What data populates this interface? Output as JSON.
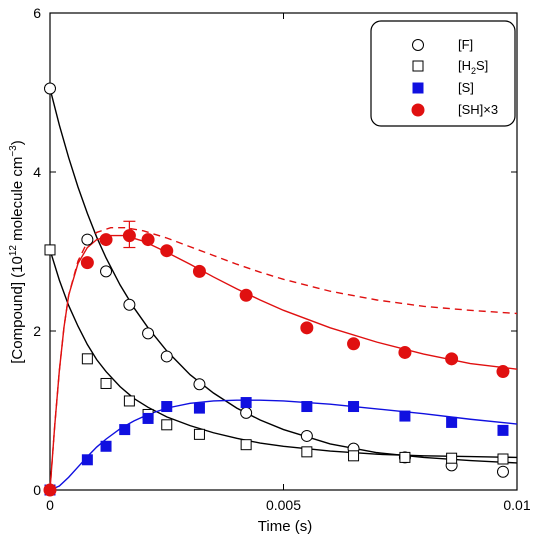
{
  "chart_data": {
    "type": "scatter",
    "xlabel": "Time (s)",
    "ylabel_main": "[Compound] (10",
    "ylabel_exp": "12",
    "ylabel_mid": " molecule cm",
    "ylabel_exp2": "−3",
    "ylabel_end": ")",
    "xlim": [
      0,
      0.01
    ],
    "ylim": [
      0,
      6
    ],
    "x_ticks": [
      {
        "value": 0,
        "label": "0"
      },
      {
        "value": 0.005,
        "label": "0.005"
      },
      {
        "value": 0.01,
        "label": "0.01"
      }
    ],
    "y_ticks": [
      {
        "value": 0,
        "label": "0"
      },
      {
        "value": 2,
        "label": "2"
      },
      {
        "value": 4,
        "label": "4"
      },
      {
        "value": 6,
        "label": "6"
      }
    ],
    "legend_position": "top-right",
    "series": [
      {
        "name": "[F]",
        "marker": "open-circle",
        "color": "#000000",
        "points": [
          [
            0.0,
            5.05
          ],
          [
            0.0008,
            3.15
          ],
          [
            0.0012,
            2.75
          ],
          [
            0.0017,
            2.33
          ],
          [
            0.0021,
            1.97
          ],
          [
            0.0025,
            1.68
          ],
          [
            0.0032,
            1.33
          ],
          [
            0.0042,
            0.97
          ],
          [
            0.0055,
            0.68
          ],
          [
            0.0065,
            0.52
          ],
          [
            0.0076,
            0.41
          ],
          [
            0.0086,
            0.31
          ],
          [
            0.0097,
            0.23
          ]
        ],
        "fit": [
          [
            0.0,
            5.05
          ],
          [
            0.0002,
            4.59
          ],
          [
            0.0004,
            4.18
          ],
          [
            0.0006,
            3.81
          ],
          [
            0.0008,
            3.48
          ],
          [
            0.001,
            3.18
          ],
          [
            0.0012,
            2.92
          ],
          [
            0.0015,
            2.58
          ],
          [
            0.0018,
            2.29
          ],
          [
            0.0021,
            2.04
          ],
          [
            0.0025,
            1.75
          ],
          [
            0.003,
            1.45
          ],
          [
            0.0035,
            1.22
          ],
          [
            0.004,
            1.03
          ],
          [
            0.0045,
            0.88
          ],
          [
            0.005,
            0.76
          ],
          [
            0.006,
            0.58
          ],
          [
            0.007,
            0.47
          ],
          [
            0.008,
            0.41
          ],
          [
            0.009,
            0.37
          ],
          [
            0.01,
            0.34
          ]
        ]
      },
      {
        "name_main": "[H",
        "name_sub": "2",
        "name_end": "S]",
        "marker": "open-square",
        "color": "#000000",
        "points": [
          [
            0.0,
            3.02
          ],
          [
            0.0008,
            1.65
          ],
          [
            0.0012,
            1.34
          ],
          [
            0.0017,
            1.12
          ],
          [
            0.0021,
            0.95
          ],
          [
            0.0025,
            0.82
          ],
          [
            0.0032,
            0.7
          ],
          [
            0.0042,
            0.57
          ],
          [
            0.0055,
            0.48
          ],
          [
            0.0065,
            0.43
          ],
          [
            0.0076,
            0.41
          ],
          [
            0.0086,
            0.4
          ],
          [
            0.0097,
            0.39
          ]
        ],
        "fit": [
          [
            0.0,
            3.02
          ],
          [
            0.0002,
            2.64
          ],
          [
            0.0004,
            2.32
          ],
          [
            0.0006,
            2.06
          ],
          [
            0.0008,
            1.83
          ],
          [
            0.001,
            1.64
          ],
          [
            0.0012,
            1.49
          ],
          [
            0.0015,
            1.3
          ],
          [
            0.0018,
            1.15
          ],
          [
            0.0021,
            1.04
          ],
          [
            0.0025,
            0.92
          ],
          [
            0.003,
            0.81
          ],
          [
            0.0035,
            0.72
          ],
          [
            0.004,
            0.65
          ],
          [
            0.0045,
            0.59
          ],
          [
            0.005,
            0.55
          ],
          [
            0.006,
            0.49
          ],
          [
            0.007,
            0.45
          ],
          [
            0.008,
            0.43
          ],
          [
            0.009,
            0.42
          ],
          [
            0.01,
            0.41
          ]
        ]
      },
      {
        "name": "[S]",
        "marker": "filled-square",
        "color": "#1010e0",
        "points": [
          [
            0.0,
            0.0
          ],
          [
            0.0008,
            0.38
          ],
          [
            0.0012,
            0.55
          ],
          [
            0.0016,
            0.76
          ],
          [
            0.0021,
            0.9
          ],
          [
            0.0025,
            1.05
          ],
          [
            0.0032,
            1.03
          ],
          [
            0.0042,
            1.1
          ],
          [
            0.0055,
            1.05
          ],
          [
            0.0065,
            1.05
          ],
          [
            0.0076,
            0.93
          ],
          [
            0.0086,
            0.85
          ],
          [
            0.0097,
            0.75
          ]
        ],
        "fit": [
          [
            0.0,
            0.0
          ],
          [
            0.0002,
            0.05
          ],
          [
            0.0004,
            0.16
          ],
          [
            0.0006,
            0.29
          ],
          [
            0.0008,
            0.42
          ],
          [
            0.001,
            0.54
          ],
          [
            0.0012,
            0.64
          ],
          [
            0.0015,
            0.77
          ],
          [
            0.0018,
            0.87
          ],
          [
            0.0021,
            0.95
          ],
          [
            0.0025,
            1.03
          ],
          [
            0.003,
            1.09
          ],
          [
            0.0035,
            1.12
          ],
          [
            0.004,
            1.13
          ],
          [
            0.0045,
            1.13
          ],
          [
            0.005,
            1.12
          ],
          [
            0.006,
            1.08
          ],
          [
            0.007,
            1.02
          ],
          [
            0.008,
            0.96
          ],
          [
            0.009,
            0.89
          ],
          [
            0.01,
            0.83
          ]
        ]
      },
      {
        "name": "[SH]×3",
        "marker": "filled-circle",
        "color": "#e01010",
        "points": [
          [
            0.0,
            0.0
          ],
          [
            0.0008,
            2.86
          ],
          [
            0.0012,
            3.15
          ],
          [
            0.0017,
            3.2
          ],
          [
            0.0021,
            3.15
          ],
          [
            0.0025,
            3.01
          ],
          [
            0.0032,
            2.75
          ],
          [
            0.0042,
            2.45
          ],
          [
            0.0055,
            2.04
          ],
          [
            0.0065,
            1.84
          ],
          [
            0.0076,
            1.73
          ],
          [
            0.0086,
            1.65
          ],
          [
            0.0097,
            1.49
          ]
        ],
        "error_bar": {
          "x": 0.0017,
          "low": 3.05,
          "high": 3.38
        },
        "fit": [
          [
            0.0,
            0.0
          ],
          [
            0.0001,
            0.8
          ],
          [
            0.0002,
            1.5
          ],
          [
            0.0003,
            2.05
          ],
          [
            0.0004,
            2.45
          ],
          [
            0.0006,
            2.85
          ],
          [
            0.0008,
            3.05
          ],
          [
            0.001,
            3.15
          ],
          [
            0.0013,
            3.2
          ],
          [
            0.0016,
            3.2
          ],
          [
            0.002,
            3.13
          ],
          [
            0.0025,
            2.99
          ],
          [
            0.003,
            2.84
          ],
          [
            0.0035,
            2.68
          ],
          [
            0.004,
            2.53
          ],
          [
            0.0045,
            2.39
          ],
          [
            0.005,
            2.26
          ],
          [
            0.006,
            2.04
          ],
          [
            0.007,
            1.86
          ],
          [
            0.008,
            1.71
          ],
          [
            0.009,
            1.59
          ],
          [
            0.01,
            1.52
          ]
        ],
        "fit_dashed": [
          [
            0.0,
            0.0
          ],
          [
            0.0001,
            0.8
          ],
          [
            0.0002,
            1.5
          ],
          [
            0.0003,
            2.05
          ],
          [
            0.0004,
            2.45
          ],
          [
            0.0006,
            2.88
          ],
          [
            0.0008,
            3.12
          ],
          [
            0.001,
            3.24
          ],
          [
            0.0013,
            3.3
          ],
          [
            0.0016,
            3.3
          ],
          [
            0.002,
            3.26
          ],
          [
            0.0025,
            3.17
          ],
          [
            0.003,
            3.06
          ],
          [
            0.0035,
            2.95
          ],
          [
            0.004,
            2.84
          ],
          [
            0.0045,
            2.74
          ],
          [
            0.005,
            2.65
          ],
          [
            0.006,
            2.5
          ],
          [
            0.007,
            2.39
          ],
          [
            0.008,
            2.31
          ],
          [
            0.009,
            2.26
          ],
          [
            0.01,
            2.22
          ]
        ]
      }
    ]
  }
}
